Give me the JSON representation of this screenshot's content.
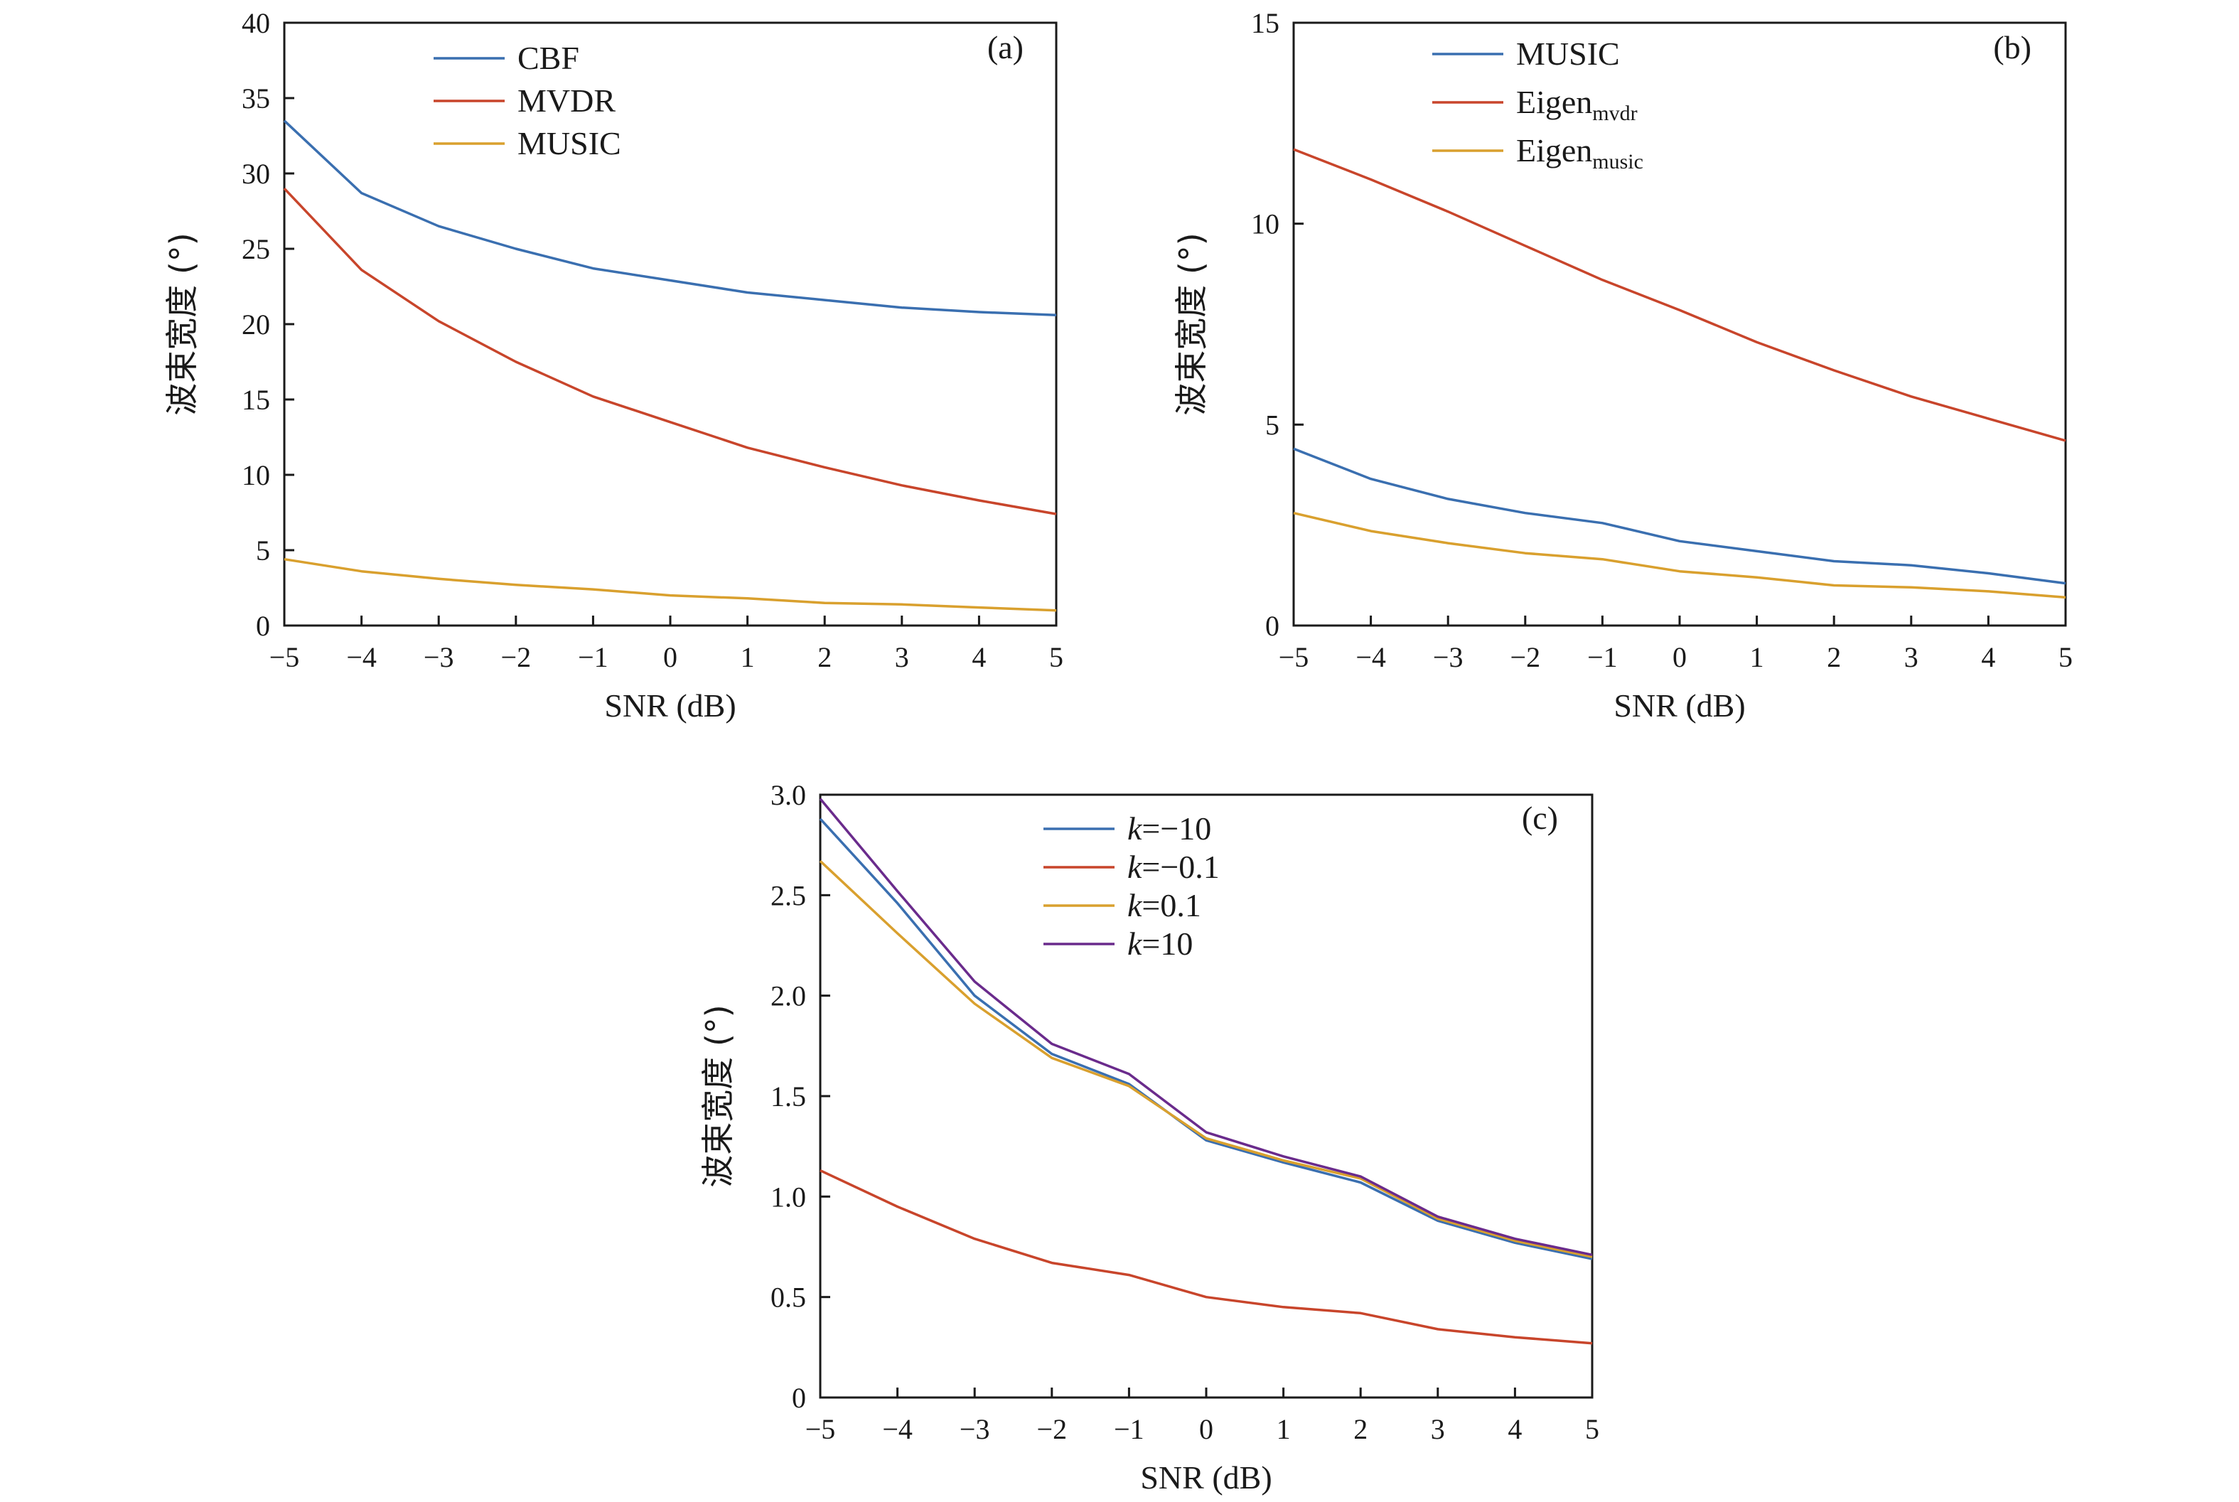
{
  "colors": {
    "blue": "#3a6fb0",
    "red": "#c8452b",
    "gold": "#d9a02e",
    "purple": "#6a2b8c",
    "axis": "#1a1a1a"
  },
  "chart_data": [
    {
      "type": "line",
      "panel": "(a)",
      "xlabel": "SNR (dB)",
      "ylabel": "波束宽度 (°)",
      "xlim": [
        -5,
        5
      ],
      "ylim": [
        0,
        40
      ],
      "x": [
        -5,
        -4,
        -3,
        -2,
        -1,
        0,
        1,
        2,
        3,
        4,
        5
      ],
      "x_ticks": [
        "−5",
        "−4",
        "−3",
        "−2",
        "−1",
        "0",
        "1",
        "2",
        "3",
        "4",
        "5"
      ],
      "y_ticks": [
        "0",
        "5",
        "10",
        "15",
        "20",
        "25",
        "30",
        "35",
        "40"
      ],
      "legend_position": "top-left",
      "series": [
        {
          "name": "CBF",
          "color": "#3a6fb0",
          "values": [
            33.5,
            28.7,
            26.5,
            25.0,
            23.7,
            22.9,
            22.1,
            21.6,
            21.1,
            20.8,
            20.6
          ]
        },
        {
          "name": "MVDR",
          "color": "#c8452b",
          "values": [
            29.0,
            23.6,
            20.2,
            17.5,
            15.2,
            13.5,
            11.8,
            10.5,
            9.3,
            8.3,
            7.4
          ]
        },
        {
          "name": "MUSIC",
          "color": "#d9a02e",
          "values": [
            4.4,
            3.6,
            3.1,
            2.7,
            2.4,
            2.0,
            1.8,
            1.5,
            1.4,
            1.2,
            1.0
          ]
        }
      ]
    },
    {
      "type": "line",
      "panel": "(b)",
      "xlabel": "SNR (dB)",
      "ylabel": "波束宽度 (°)",
      "xlim": [
        -5,
        5
      ],
      "ylim": [
        0,
        15
      ],
      "x": [
        -5,
        -4,
        -3,
        -2,
        -1,
        0,
        1,
        2,
        3,
        4,
        5
      ],
      "x_ticks": [
        "−5",
        "−4",
        "−3",
        "−2",
        "−1",
        "0",
        "1",
        "2",
        "3",
        "4",
        "5"
      ],
      "y_ticks": [
        "0",
        "5",
        "10",
        "15"
      ],
      "legend_position": "top-left",
      "series": [
        {
          "name": "MUSIC",
          "name_sub": "",
          "color": "#3a6fb0",
          "values": [
            4.4,
            3.65,
            3.15,
            2.8,
            2.55,
            2.1,
            1.85,
            1.6,
            1.5,
            1.3,
            1.05
          ]
        },
        {
          "name": "Eigen",
          "name_sub": "mvdr",
          "color": "#c8452b",
          "values": [
            11.85,
            11.1,
            10.3,
            9.45,
            8.6,
            7.85,
            7.05,
            6.35,
            5.7,
            5.15,
            4.6
          ]
        },
        {
          "name": "Eigen",
          "name_sub": "music",
          "color": "#d9a02e",
          "values": [
            2.8,
            2.35,
            2.05,
            1.8,
            1.65,
            1.35,
            1.2,
            1.0,
            0.95,
            0.85,
            0.7
          ]
        }
      ]
    },
    {
      "type": "line",
      "panel": "(c)",
      "xlabel": "SNR (dB)",
      "ylabel": "波束宽度 (°)",
      "xlim": [
        -5,
        5
      ],
      "ylim": [
        0,
        3.0
      ],
      "x": [
        -5,
        -4,
        -3,
        -2,
        -1,
        0,
        1,
        2,
        3,
        4,
        5
      ],
      "x_ticks": [
        "−5",
        "−4",
        "−3",
        "−2",
        "−1",
        "0",
        "1",
        "2",
        "3",
        "4",
        "5"
      ],
      "y_ticks": [
        "0",
        "0.5",
        "1.0",
        "1.5",
        "2.0",
        "2.5",
        "3.0"
      ],
      "legend_position": "top-left",
      "series": [
        {
          "name": "k=−10",
          "name_italic": "k",
          "name_rest": "=−10",
          "color": "#3a6fb0",
          "values": [
            2.88,
            2.46,
            2.0,
            1.71,
            1.56,
            1.28,
            1.17,
            1.07,
            0.88,
            0.77,
            0.69
          ]
        },
        {
          "name": "k=−0.1",
          "name_italic": "k",
          "name_rest": "=−0.1",
          "color": "#c8452b",
          "values": [
            1.13,
            0.95,
            0.79,
            0.67,
            0.61,
            0.5,
            0.45,
            0.42,
            0.34,
            0.3,
            0.27
          ]
        },
        {
          "name": "k=0.1",
          "name_italic": "k",
          "name_rest": "=0.1",
          "color": "#d9a02e",
          "values": [
            2.67,
            2.31,
            1.96,
            1.69,
            1.55,
            1.29,
            1.18,
            1.09,
            0.89,
            0.78,
            0.7
          ]
        },
        {
          "name": "k=10",
          "name_italic": "k",
          "name_rest": "=10",
          "color": "#6a2b8c",
          "values": [
            2.98,
            2.52,
            2.07,
            1.76,
            1.61,
            1.32,
            1.2,
            1.1,
            0.9,
            0.79,
            0.71
          ]
        }
      ]
    }
  ]
}
